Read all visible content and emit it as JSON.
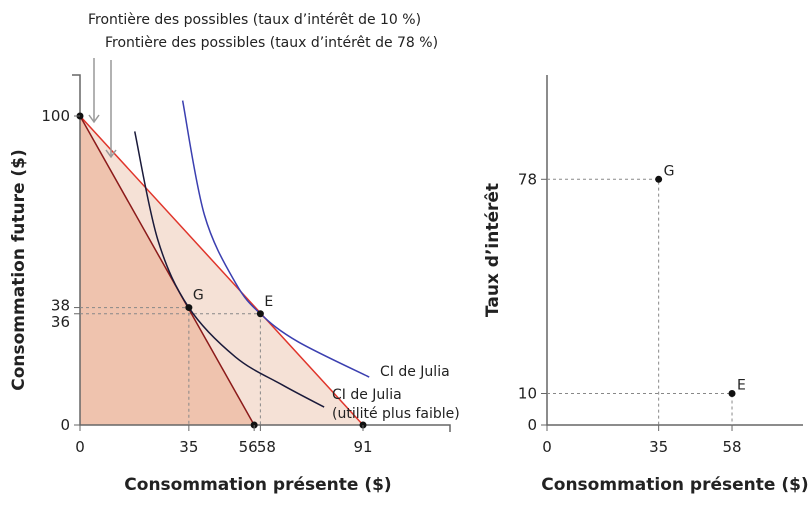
{
  "chart_data": [
    {
      "type": "line",
      "xlabel": "Consommation présente ($)",
      "ylabel": "Consommation future ($)",
      "x_ticks": [
        0,
        35,
        56,
        58,
        91
      ],
      "y_ticks": [
        0,
        36,
        38,
        100
      ],
      "xlim": [
        0,
        119
      ],
      "ylim": [
        0,
        113
      ],
      "grid": false,
      "series": [
        {
          "name": "Frontière des possibles (taux d’intérêt de 10 %)",
          "points": [
            [
              0,
              100
            ],
            [
              91,
              0
            ]
          ],
          "color": "#e0352b"
        },
        {
          "name": "Frontière des possibles (taux d’intérêt de 78 %)",
          "points": [
            [
              0,
              100
            ],
            [
              56,
              0
            ]
          ],
          "color": "#8b1a1a"
        },
        {
          "name": "CI de Julia",
          "points": [
            [
              33,
              105
            ],
            [
              40,
              68
            ],
            [
              50,
              46
            ],
            [
              58,
              36
            ],
            [
              70,
              27
            ],
            [
              93,
              15.5
            ]
          ],
          "color": "#3b3fb0"
        },
        {
          "name": "CI de Julia (utilité plus faible)",
          "points": [
            [
              17.6,
              95
            ],
            [
              25,
              60
            ],
            [
              35,
              38
            ],
            [
              50,
              22
            ],
            [
              65,
              13
            ],
            [
              78.5,
              5.8
            ]
          ],
          "color": "#1a1a3a"
        }
      ],
      "points": [
        {
          "label": "G",
          "x": 35,
          "y": 38
        },
        {
          "label": "E",
          "x": 58,
          "y": 36
        },
        {
          "label": "",
          "x": 0,
          "y": 100
        },
        {
          "label": "",
          "x": 56,
          "y": 0
        },
        {
          "label": "",
          "x": 91,
          "y": 0
        }
      ],
      "annotations": {
        "frontier_10": "Frontière des possibles (taux d’intérêt de 10 %)",
        "frontier_78": "Frontière des possibles (taux d’intérêt de 78 %)",
        "ic_high": "CI de Julia",
        "ic_low_1": "CI de Julia",
        "ic_low_2": "(utilité plus faible)"
      },
      "fill_colors": {
        "outer": "#f5e1d6",
        "inner": "#efc3ae"
      }
    },
    {
      "type": "scatter",
      "xlabel": "Consommation présente ($)",
      "ylabel": "Taux d’intérêt",
      "x_ticks": [
        0,
        35,
        58
      ],
      "y_ticks": [
        0,
        10,
        78
      ],
      "xlim": [
        0,
        80
      ],
      "ylim": [
        0,
        111
      ],
      "grid": false,
      "points": [
        {
          "label": "G",
          "x": 35,
          "y": 78
        },
        {
          "label": "E",
          "x": 58,
          "y": 10
        }
      ]
    }
  ]
}
